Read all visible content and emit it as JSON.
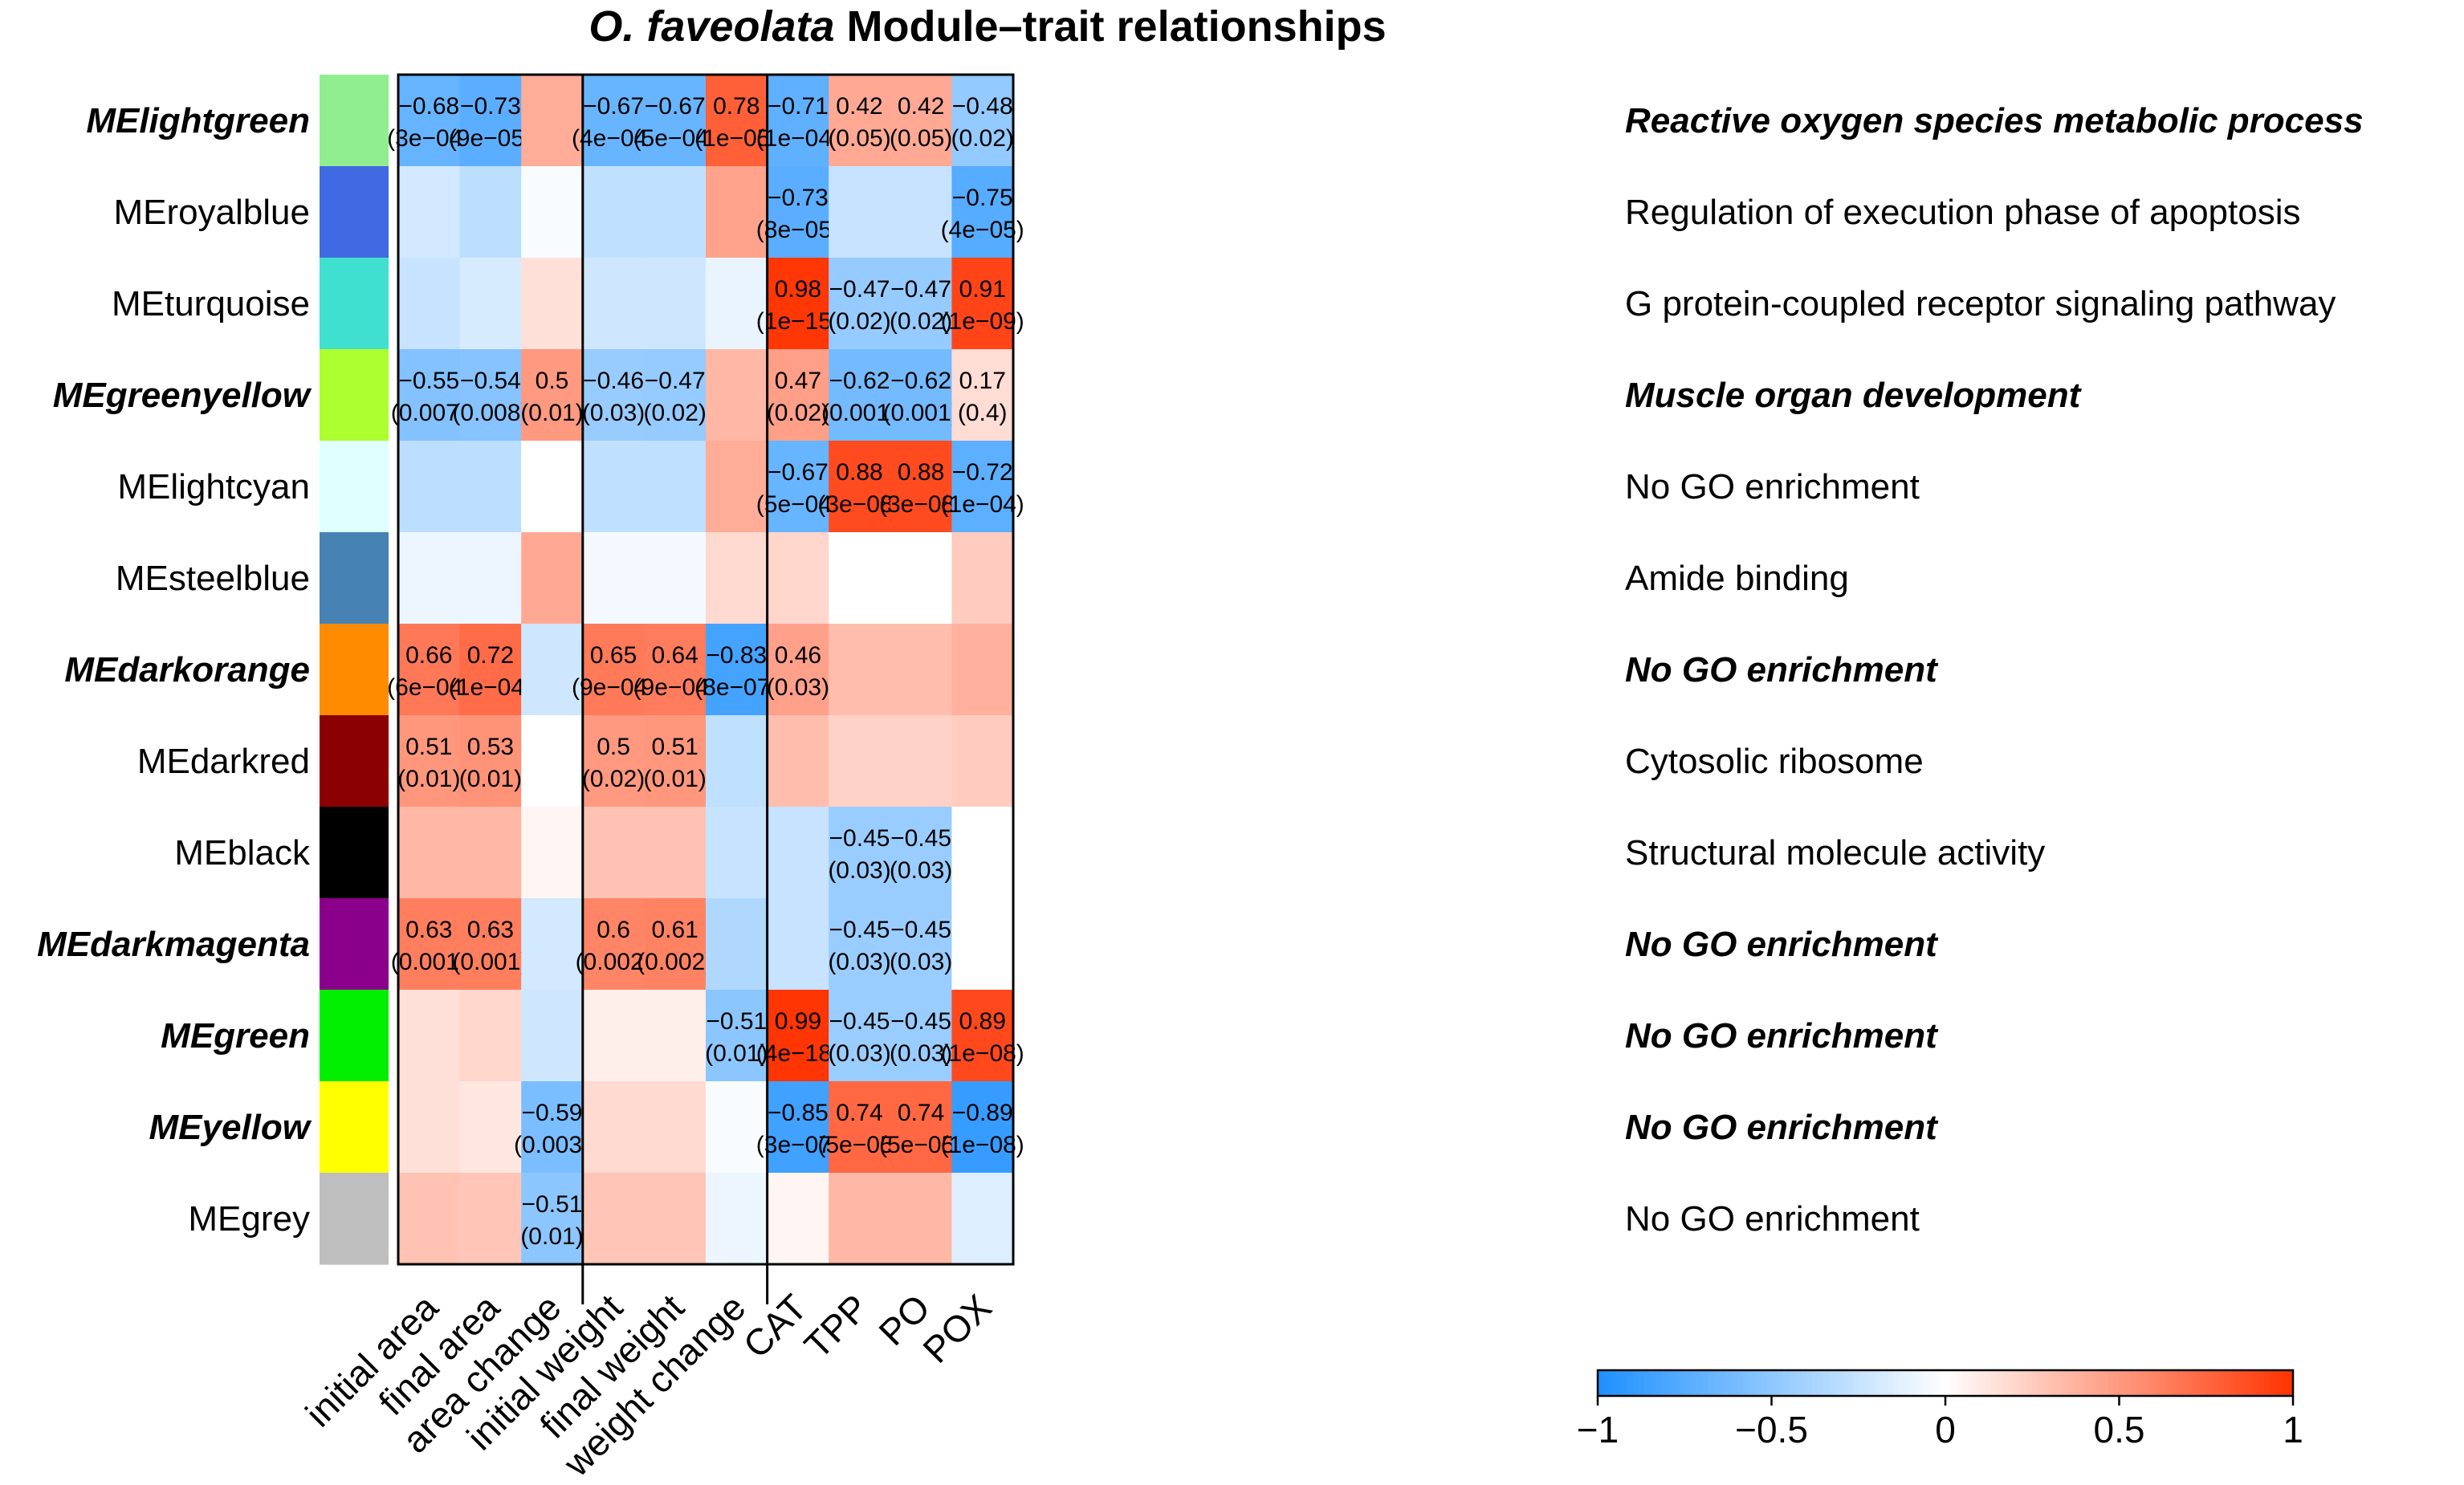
{
  "chart_data": {
    "type": "heatmap",
    "title_italic": "O. faveolata",
    "title_rest": " Module–trait relationships",
    "columns": [
      "initial area",
      "final area",
      "area change",
      "initial weight",
      "final weight",
      "weight change",
      "CAT",
      "TPP",
      "PO",
      "POX"
    ],
    "column_groups": [
      [
        0,
        2
      ],
      [
        3,
        5
      ],
      [
        6,
        9
      ]
    ],
    "rows": [
      {
        "module": "MElightgreen",
        "color": "#90EE90",
        "bold": true,
        "go_term": "Reactive oxygen species metabolic process",
        "values": [
          -0.68,
          -0.73,
          0.4,
          -0.67,
          -0.67,
          0.78,
          -0.71,
          0.42,
          0.42,
          -0.48
        ],
        "labels": [
          "−0.68\n(3e−04)",
          "−0.73\n(9e−05)",
          "",
          "−0.67\n(4e−04)",
          "−0.67\n(5e−04)",
          "0.78\n(1e−05)",
          "−0.71\n(1e−04)",
          "0.42\n(0.05)",
          "0.42\n(0.05)",
          "−0.48\n(0.02)"
        ]
      },
      {
        "module": "MEroyalblue",
        "color": "#4169E1",
        "bold": false,
        "go_term": "Regulation of execution phase of apoptosis",
        "values": [
          -0.2,
          -0.3,
          -0.03,
          -0.28,
          -0.28,
          0.45,
          -0.73,
          -0.25,
          -0.25,
          -0.75
        ],
        "labels": [
          "",
          "",
          "",
          "",
          "",
          "",
          "−0.73\n(8e−05)",
          "",
          "",
          "−0.75\n(4e−05)"
        ]
      },
      {
        "module": "MEturquoise",
        "color": "#40E0D0",
        "bold": false,
        "go_term": "G protein-coupled receptor signaling pathway",
        "values": [
          -0.25,
          -0.18,
          0.15,
          -0.22,
          -0.22,
          -0.1,
          0.98,
          -0.47,
          -0.47,
          0.91
        ],
        "labels": [
          "",
          "",
          "",
          "",
          "",
          "",
          "0.98\n(1e−15)",
          "−0.47\n(0.02)",
          "−0.47\n(0.02)",
          "0.91\n(1e−09)"
        ]
      },
      {
        "module": "MEgreenyellow",
        "color": "#ADFF2F",
        "bold": true,
        "go_term": "Muscle organ development",
        "values": [
          -0.55,
          -0.54,
          0.5,
          -0.46,
          -0.47,
          0.35,
          0.47,
          -0.62,
          -0.62,
          0.17
        ],
        "labels": [
          "−0.55\n(0.007)",
          "−0.54\n(0.008)",
          "0.5\n(0.01)",
          "−0.46\n(0.03)",
          "−0.47\n(0.02)",
          "",
          "0.47\n(0.02)",
          "−0.62\n(0.001)",
          "−0.62\n(0.001)",
          "0.17\n(0.4)"
        ]
      },
      {
        "module": "MElightcyan",
        "color": "#E0FFFF",
        "bold": false,
        "go_term": "No GO enrichment",
        "values": [
          -0.3,
          -0.3,
          0.0,
          -0.28,
          -0.28,
          0.4,
          -0.67,
          0.88,
          0.88,
          -0.72
        ],
        "labels": [
          "",
          "",
          "",
          "",
          "",
          "",
          "−0.67\n(5e−04)",
          "0.88\n(3e−08)",
          "0.88\n(3e−08)",
          "−0.72\n(1e−04)"
        ]
      },
      {
        "module": "MEsteelblue",
        "color": "#4682B4",
        "bold": false,
        "go_term": "Amide binding",
        "values": [
          -0.08,
          -0.08,
          0.42,
          -0.05,
          -0.05,
          0.18,
          0.2,
          0.0,
          0.0,
          0.25
        ],
        "labels": [
          "",
          "",
          "",
          "",
          "",
          "",
          "",
          "",
          "",
          ""
        ]
      },
      {
        "module": "MEdarkorange",
        "color": "#FF8C00",
        "bold": true,
        "go_term": "No GO enrichment",
        "values": [
          0.66,
          0.72,
          -0.22,
          0.65,
          0.64,
          -0.83,
          0.46,
          0.32,
          0.32,
          0.38
        ],
        "labels": [
          "0.66\n(6e−04)",
          "0.72\n(1e−04)",
          "",
          "0.65\n(9e−04)",
          "0.64\n(9e−04)",
          "−0.83\n(8e−07)",
          "0.46\n(0.03)",
          "",
          "",
          ""
        ]
      },
      {
        "module": "MEdarkred",
        "color": "#8B0000",
        "bold": false,
        "go_term": "Cytosolic ribosome",
        "values": [
          0.51,
          0.53,
          0.0,
          0.5,
          0.51,
          -0.28,
          0.32,
          0.22,
          0.22,
          0.25
        ],
        "labels": [
          "0.51\n(0.01)",
          "0.53\n(0.01)",
          "",
          "0.5\n(0.02)",
          "0.51\n(0.01)",
          "",
          "",
          "",
          "",
          ""
        ]
      },
      {
        "module": "MEblack",
        "color": "#000000",
        "bold": false,
        "go_term": "Structural molecule activity",
        "values": [
          0.35,
          0.35,
          0.05,
          0.3,
          0.3,
          -0.25,
          -0.25,
          -0.45,
          -0.45,
          0.0
        ],
        "labels": [
          "",
          "",
          "",
          "",
          "",
          "",
          "",
          "−0.45\n(0.03)",
          "−0.45\n(0.03)",
          ""
        ]
      },
      {
        "module": "MEdarkmagenta",
        "color": "#8B008B",
        "bold": true,
        "go_term": "No GO enrichment",
        "values": [
          0.63,
          0.63,
          -0.2,
          0.6,
          0.61,
          -0.35,
          -0.25,
          -0.45,
          -0.45,
          0.0
        ],
        "labels": [
          "0.63\n(0.001)",
          "0.63\n(0.001)",
          "",
          "0.6\n(0.002)",
          "0.61\n(0.002)",
          "",
          "",
          "−0.45\n(0.03)",
          "−0.45\n(0.03)",
          ""
        ]
      },
      {
        "module": "MEgreen",
        "color": "#00EE00",
        "bold": true,
        "go_term": "No GO enrichment",
        "values": [
          0.15,
          0.2,
          -0.22,
          0.08,
          0.08,
          -0.51,
          0.99,
          -0.45,
          -0.45,
          0.89
        ],
        "labels": [
          "",
          "",
          "",
          "",
          "",
          "−0.51\n(0.01)",
          "0.99\n(4e−18)",
          "−0.45\n(0.03)",
          "−0.45\n(0.03)",
          "0.89\n(1e−08)"
        ]
      },
      {
        "module": "MEyellow",
        "color": "#FFFF00",
        "bold": true,
        "go_term": "No GO enrichment",
        "values": [
          0.15,
          0.12,
          -0.59,
          0.18,
          0.18,
          -0.03,
          -0.85,
          0.74,
          0.74,
          -0.89
        ],
        "labels": [
          "",
          "",
          "−0.59\n(0.003)",
          "",
          "",
          "",
          "−0.85\n(3e−07)",
          "0.74\n(5e−05)",
          "0.74\n(5e−05)",
          "−0.89\n(1e−08)"
        ]
      },
      {
        "module": "MEgrey",
        "color": "#BEBEBE",
        "bold": false,
        "go_term": "No GO enrichment",
        "values": [
          0.3,
          0.28,
          -0.51,
          0.28,
          0.28,
          -0.08,
          0.05,
          0.35,
          0.35,
          -0.15
        ],
        "labels": [
          "",
          "",
          "−0.51\n(0.01)",
          "",
          "",
          "",
          "",
          "",
          "",
          ""
        ]
      }
    ],
    "colorscale": {
      "min": -1,
      "max": 1,
      "low": "#1E90FF",
      "mid": "#FFFFFF",
      "high": "#FF3300"
    },
    "legend_ticks": [
      "−1",
      "−0.5",
      "0",
      "0.5",
      "1"
    ]
  }
}
